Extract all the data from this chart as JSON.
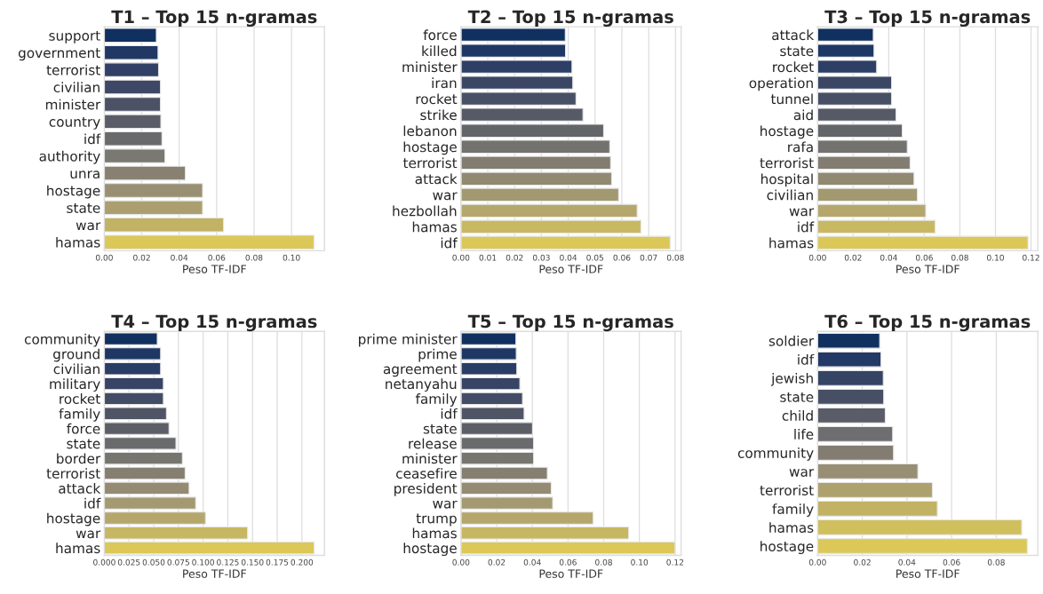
{
  "chart_data": [
    {
      "type": "bar",
      "orientation": "horizontal",
      "title": "T1 – Top 15 n-gramas",
      "xlabel": "Peso TF-IDF",
      "grid": "x",
      "categories": [
        "support",
        "government",
        "terrorist",
        "civilian",
        "minister",
        "country",
        "idf",
        "authority",
        "unra",
        "hostage",
        "state",
        "war",
        "hamas"
      ],
      "values": [
        0.0278,
        0.0287,
        0.029,
        0.03,
        0.03,
        0.0302,
        0.0308,
        0.0324,
        0.0433,
        0.0525,
        0.0525,
        0.0637,
        0.112
      ],
      "colors": [
        "#10305f",
        "#213865",
        "#304066",
        "#3e4866",
        "#4c5265",
        "#5a5d67",
        "#696a6c",
        "#797871",
        "#888171",
        "#998f73",
        "#ab9f6f",
        "#c2b264",
        "#dbc858"
      ],
      "xlim": [
        0,
        0.1176
      ],
      "xticks": [
        {
          "value": 0,
          "label": "0.00"
        },
        {
          "value": 0.02,
          "label": "0.02"
        },
        {
          "value": 0.04,
          "label": "0.04"
        },
        {
          "value": 0.06,
          "label": "0.06"
        },
        {
          "value": 0.08,
          "label": "0.08"
        },
        {
          "value": 0.1,
          "label": "0.10"
        }
      ]
    },
    {
      "type": "bar",
      "orientation": "horizontal",
      "title": "T2 – Top 15 n-gramas",
      "xlabel": "Peso TF-IDF",
      "grid": "x",
      "categories": [
        "force",
        "killed",
        "minister",
        "iran",
        "rocket",
        "strike",
        "lebanon",
        "hostage",
        "terrorist",
        "attack",
        "war",
        "hezbollah",
        "hamas",
        "idf"
      ],
      "values": [
        0.0389,
        0.039,
        0.0414,
        0.0417,
        0.0429,
        0.0455,
        0.0532,
        0.0555,
        0.0558,
        0.0562,
        0.0588,
        0.0657,
        0.0671,
        0.078
      ],
      "colors": [
        "#10305f",
        "#1f3765",
        "#2d3f66",
        "#3b4665",
        "#485065",
        "#565a66",
        "#646568",
        "#73726f",
        "#827c71",
        "#928972",
        "#a39971",
        "#b5a76c",
        "#c8b862",
        "#dbc858"
      ],
      "xlim": [
        0,
        0.0821
      ],
      "xticks": [
        {
          "value": 0,
          "label": "0.00"
        },
        {
          "value": 0.01,
          "label": "0.01"
        },
        {
          "value": 0.02,
          "label": "0.02"
        },
        {
          "value": 0.03,
          "label": "0.03"
        },
        {
          "value": 0.04,
          "label": "0.04"
        },
        {
          "value": 0.05,
          "label": "0.05"
        },
        {
          "value": 0.06,
          "label": "0.06"
        },
        {
          "value": 0.07,
          "label": "0.07"
        },
        {
          "value": 0.08,
          "label": "0.08"
        }
      ]
    },
    {
      "type": "bar",
      "orientation": "horizontal",
      "title": "T3 – Top 15 n-gramas",
      "xlabel": "Peso TF-IDF",
      "grid": "x",
      "categories": [
        "attack",
        "state",
        "rocket",
        "operation",
        "tunnel",
        "aid",
        "hostage",
        "rafa",
        "terrorist",
        "hospital",
        "civilian",
        "war",
        "idf",
        "hamas"
      ],
      "values": [
        0.0313,
        0.0317,
        0.0332,
        0.0416,
        0.0416,
        0.0441,
        0.0476,
        0.0504,
        0.052,
        0.0542,
        0.0561,
        0.0608,
        0.0661,
        0.1183
      ],
      "colors": [
        "#10305f",
        "#1f3765",
        "#2d3f66",
        "#3b4665",
        "#485065",
        "#565a66",
        "#646568",
        "#73726f",
        "#827c71",
        "#928972",
        "#a39971",
        "#b5a76c",
        "#c8b862",
        "#dbc858"
      ],
      "xlim": [
        0,
        0.1238
      ],
      "xticks": [
        {
          "value": 0,
          "label": "0.00"
        },
        {
          "value": 0.02,
          "label": "0.02"
        },
        {
          "value": 0.04,
          "label": "0.04"
        },
        {
          "value": 0.06,
          "label": "0.06"
        },
        {
          "value": 0.08,
          "label": "0.08"
        },
        {
          "value": 0.1,
          "label": "0.10"
        },
        {
          "value": 0.12,
          "label": "0.12"
        }
      ]
    },
    {
      "type": "bar",
      "orientation": "horizontal",
      "title": "T4 – Top 15 n-gramas",
      "xlabel": "Peso TF-IDF",
      "grid": "x",
      "categories": [
        "community",
        "ground",
        "civilian",
        "military",
        "rocket",
        "family",
        "force",
        "state",
        "border",
        "terrorist",
        "attack",
        "idf",
        "hostage",
        "war",
        "hamas"
      ],
      "values": [
        0.0536,
        0.057,
        0.057,
        0.0598,
        0.0598,
        0.0629,
        0.0655,
        0.0725,
        0.079,
        0.0818,
        0.0858,
        0.0925,
        0.1024,
        0.145,
        0.2124
      ],
      "colors": [
        "#10305f",
        "#1e3765",
        "#2a3d66",
        "#374465",
        "#434c65",
        "#505566",
        "#5d5f67",
        "#6a6b6d",
        "#777570",
        "#857f71",
        "#948b72",
        "#a49a71",
        "#b5a76c",
        "#c7b763",
        "#dbc858"
      ],
      "xlim": [
        0,
        0.2228
      ],
      "xticks": [
        {
          "value": 0,
          "label": "0.000"
        },
        {
          "value": 0.025,
          "label": "0.025"
        },
        {
          "value": 0.05,
          "label": "0.050"
        },
        {
          "value": 0.075,
          "label": "0.075"
        },
        {
          "value": 0.1,
          "label": "0.100"
        },
        {
          "value": 0.125,
          "label": "0.125"
        },
        {
          "value": 0.15,
          "label": "0.150"
        },
        {
          "value": 0.175,
          "label": "0.175"
        },
        {
          "value": 0.2,
          "label": "0.200"
        }
      ]
    },
    {
      "type": "bar",
      "orientation": "horizontal",
      "title": "T5 – Top 15 n-gramas",
      "xlabel": "Peso TF-IDF",
      "grid": "x",
      "categories": [
        "prime minister",
        "prime",
        "agreement",
        "netanyahu",
        "family",
        "idf",
        "state",
        "release",
        "minister",
        "ceasefire",
        "president",
        "war",
        "trump",
        "hamas",
        "hostage"
      ],
      "values": [
        0.0308,
        0.031,
        0.0313,
        0.033,
        0.0345,
        0.0354,
        0.0401,
        0.0407,
        0.0407,
        0.0484,
        0.0506,
        0.0514,
        0.0741,
        0.094,
        0.12
      ],
      "colors": [
        "#10305f",
        "#1e3765",
        "#2a3d66",
        "#374465",
        "#434c65",
        "#505566",
        "#5d5f67",
        "#6a6b6d",
        "#777570",
        "#857f71",
        "#948b72",
        "#a49a71",
        "#b5a76c",
        "#c7b763",
        "#dbc858"
      ],
      "xlim": [
        0,
        0.1234
      ],
      "xticks": [
        {
          "value": 0,
          "label": "0.00"
        },
        {
          "value": 0.02,
          "label": "0.02"
        },
        {
          "value": 0.04,
          "label": "0.04"
        },
        {
          "value": 0.06,
          "label": "0.06"
        },
        {
          "value": 0.08,
          "label": "0.08"
        },
        {
          "value": 0.1,
          "label": "0.10"
        },
        {
          "value": 0.12,
          "label": "0.12"
        }
      ]
    },
    {
      "type": "bar",
      "orientation": "horizontal",
      "title": "T6 – Top 15 n-gramas",
      "xlabel": "Peso TF-IDF",
      "grid": "x",
      "categories": [
        "soldier",
        "idf",
        "jewish",
        "state",
        "child",
        "life",
        "community",
        "war",
        "terrorist",
        "family",
        "hamas",
        "hostage"
      ],
      "values": [
        0.0278,
        0.0284,
        0.0294,
        0.0296,
        0.0303,
        0.0336,
        0.034,
        0.0449,
        0.0514,
        0.0536,
        0.0914,
        0.0939
      ],
      "colors": [
        "#10305f",
        "#233966",
        "#354365",
        "#474f65",
        "#5a5d67",
        "#6e6e70",
        "#837c71",
        "#988e73",
        "#ada16e",
        "#c1b264",
        "#d0bf5d",
        "#dbc858"
      ],
      "xlim": [
        0,
        0.0986
      ],
      "xticks": [
        {
          "value": 0,
          "label": "0.00"
        },
        {
          "value": 0.02,
          "label": "0.02"
        },
        {
          "value": 0.04,
          "label": "0.04"
        },
        {
          "value": 0.06,
          "label": "0.06"
        },
        {
          "value": 0.08,
          "label": "0.08"
        }
      ]
    }
  ]
}
